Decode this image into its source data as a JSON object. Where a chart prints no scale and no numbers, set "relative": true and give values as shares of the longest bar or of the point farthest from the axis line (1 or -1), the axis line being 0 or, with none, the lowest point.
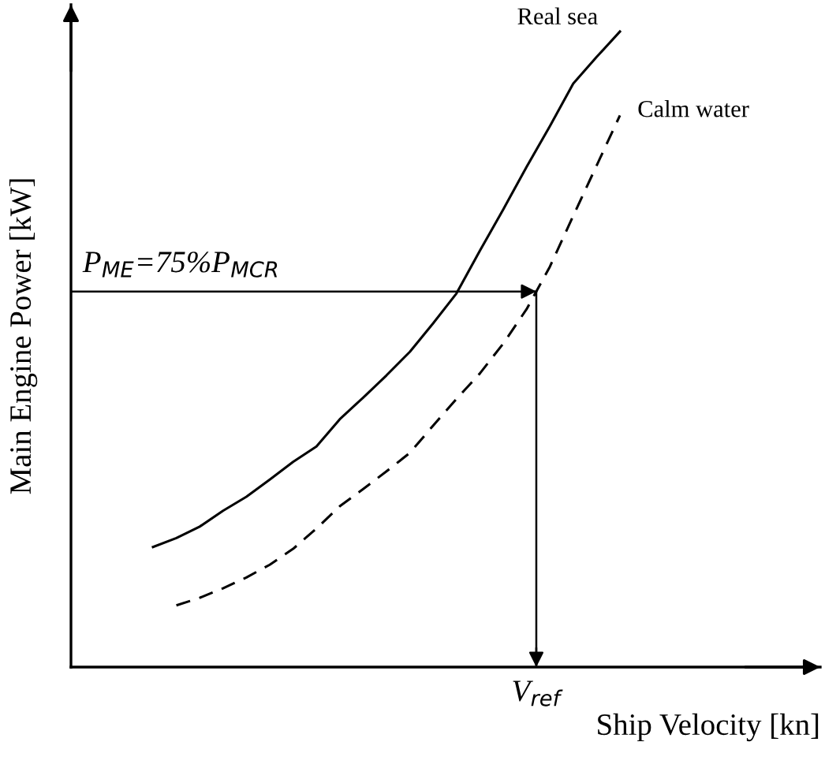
{
  "chart_data": {
    "type": "line",
    "relative": true,
    "xlabel": "Ship Velocity [kn]",
    "ylabel": "Main Engine Power [kW]",
    "categories": [
      null,
      null,
      null,
      null,
      null,
      null,
      null,
      null,
      null,
      null,
      null,
      null,
      null,
      null,
      null,
      null,
      null,
      null,
      null,
      null,
      null
    ],
    "series": [
      {
        "name": "Real sea",
        "color": "#000000",
        "line_style": "solid",
        "values": [
          0.189,
          0.203,
          0.221,
          0.246,
          0.268,
          0.295,
          0.323,
          0.347,
          0.39,
          0.424,
          0.459,
          0.496,
          0.541,
          0.588,
          0.655,
          0.72,
          0.787,
          0.851,
          0.918,
          0.96,
          1.0
        ]
      },
      {
        "name": "Calm water",
        "color": "#000000",
        "line_style": "dashed",
        "values": [
          null,
          0.097,
          0.109,
          0.124,
          0.141,
          0.161,
          0.186,
          0.218,
          0.253,
          0.28,
          0.308,
          0.337,
          0.38,
          0.422,
          0.462,
          0.509,
          0.563,
          0.63,
          0.71,
          0.789,
          0.868
        ]
      }
    ],
    "ref_lines": [
      {
        "axis": "y",
        "value": 0.591
      }
    ],
    "annotations": [
      "P$_{ME}$=75%P$_{MCR}$",
      "V$_{ref}$"
    ]
  }
}
